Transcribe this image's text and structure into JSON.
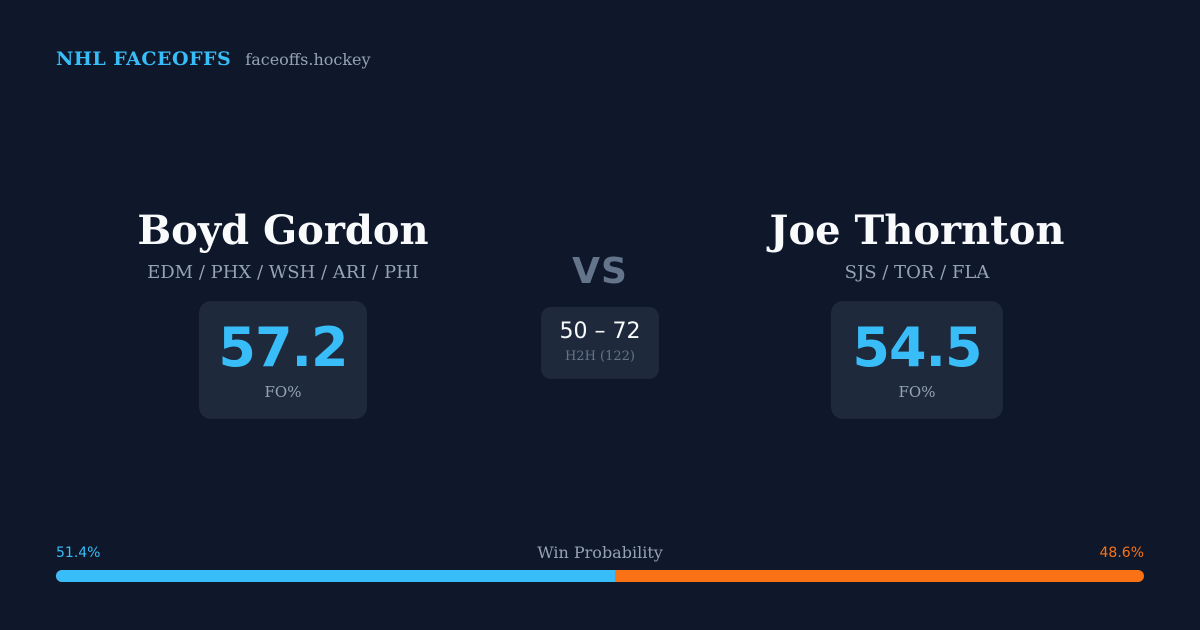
{
  "brand": {
    "name": "NHL FACEOFFS",
    "domain": "faceoffs.hockey"
  },
  "player_left": {
    "name": "Boyd Gordon",
    "teams": "EDM / PHX / WSH / ARI / PHI",
    "fo_pct": "57.2",
    "fo_label": "FO%"
  },
  "player_right": {
    "name": "Joe Thornton",
    "teams": "SJS / TOR / FLA",
    "fo_pct": "54.5",
    "fo_label": "FO%"
  },
  "matchup": {
    "vs_label": "VS",
    "h2h_score": "50 – 72",
    "h2h_label": "H2H (122)"
  },
  "win_probability": {
    "title": "Win Probability",
    "left_label": "51.4%",
    "right_label": "48.6%",
    "left_value": 51.4,
    "right_value": 48.6,
    "left_color": "#38bdf8",
    "right_color": "#f97316"
  },
  "colors": {
    "background": "#0f172a",
    "card": "#1e293b",
    "accent": "#38bdf8",
    "secondary_accent": "#f97316"
  }
}
